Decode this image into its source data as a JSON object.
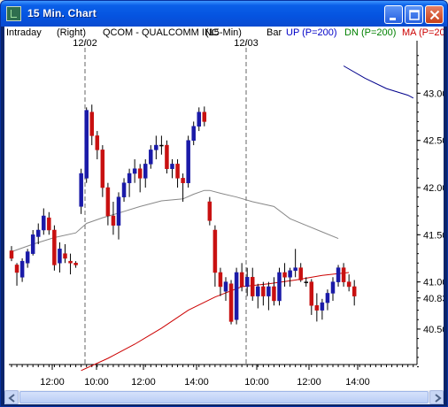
{
  "window": {
    "title": "15 Min. Chart",
    "colors": {
      "titlebar": "#0553e0",
      "close": "#c8401a"
    }
  },
  "header": {
    "mode": "Intraday",
    "scale": "(Right)",
    "instrument": "QCOM - QUALCOMM INC",
    "interval": "(15-Min)",
    "chart_style": "Bar",
    "up_label": "UP (P=200)",
    "dn_label": "DN (P=200)",
    "ma_label": "MA (P=20",
    "colors": {
      "up": "#0000c8",
      "dn": "#008000",
      "ma": "#cc0000"
    }
  },
  "chart_data": {
    "type": "candlestick",
    "day_labels": [
      "12/02",
      "12/03"
    ],
    "y_ticks": [
      43.0,
      42.5,
      42.0,
      41.5,
      41.0,
      40.5
    ],
    "last_price": "40.83",
    "x_tick_labels": [
      "12:00",
      "10:00",
      "12:00",
      "14:00",
      "10:00",
      "12:00",
      "14:00"
    ],
    "ylim": [
      40.05,
      43.55
    ],
    "candle_colors": {
      "up": "#1a1aa8",
      "down": "#c81010",
      "neutral": "#000000"
    },
    "candles": [
      [
        41.33,
        41.38,
        41.22,
        41.25
      ],
      [
        41.18,
        41.2,
        40.96,
        41.1
      ],
      [
        41.05,
        41.25,
        41.0,
        41.22
      ],
      [
        41.2,
        41.35,
        41.15,
        41.32
      ],
      [
        41.3,
        41.55,
        41.28,
        41.5
      ],
      [
        41.48,
        41.62,
        41.4,
        41.55
      ],
      [
        41.55,
        41.78,
        41.5,
        41.7
      ],
      [
        41.68,
        41.74,
        41.5,
        41.55
      ],
      [
        41.55,
        41.6,
        41.12,
        41.18
      ],
      [
        41.2,
        41.42,
        41.1,
        41.35
      ],
      [
        41.3,
        41.4,
        41.2,
        41.25
      ],
      [
        41.22,
        41.3,
        41.08,
        41.2
      ],
      [
        41.2,
        41.22,
        41.15,
        41.18
      ],
      [
        41.8,
        42.2,
        41.72,
        42.15
      ],
      [
        42.1,
        42.85,
        42.05,
        42.82
      ],
      [
        42.8,
        42.88,
        42.45,
        42.55
      ],
      [
        42.55,
        42.6,
        42.3,
        42.4
      ],
      [
        42.4,
        42.45,
        41.9,
        42.0
      ],
      [
        42.0,
        42.05,
        41.6,
        41.7
      ],
      [
        41.7,
        41.85,
        41.5,
        41.6
      ],
      [
        41.6,
        41.95,
        41.45,
        41.9
      ],
      [
        41.9,
        42.1,
        41.85,
        42.05
      ],
      [
        42.05,
        42.2,
        41.9,
        42.15
      ],
      [
        42.15,
        42.3,
        42.05,
        42.2
      ],
      [
        42.2,
        42.25,
        41.95,
        42.1
      ],
      [
        42.1,
        42.3,
        42.0,
        42.25
      ],
      [
        42.25,
        42.45,
        42.2,
        42.4
      ],
      [
        42.4,
        42.55,
        42.3,
        42.45
      ],
      [
        42.45,
        42.55,
        42.35,
        42.45
      ],
      [
        42.45,
        42.5,
        42.15,
        42.2
      ],
      [
        42.2,
        42.3,
        42.1,
        42.25
      ],
      [
        42.25,
        42.3,
        42.0,
        42.1
      ],
      [
        42.1,
        42.15,
        41.85,
        42.05
      ],
      [
        42.05,
        42.55,
        42.0,
        42.5
      ],
      [
        42.5,
        42.7,
        42.45,
        42.65
      ],
      [
        42.65,
        42.85,
        42.6,
        42.8
      ],
      [
        42.8,
        42.86,
        42.65,
        42.7
      ],
      [
        41.85,
        41.9,
        41.6,
        41.65
      ],
      [
        41.55,
        41.6,
        40.95,
        41.1
      ],
      [
        41.1,
        41.15,
        40.85,
        40.95
      ],
      [
        40.9,
        41.05,
        40.8,
        41.0
      ],
      [
        40.98,
        41.02,
        40.55,
        40.58
      ],
      [
        40.6,
        41.15,
        40.55,
        41.1
      ],
      [
        41.1,
        41.2,
        40.9,
        40.95
      ],
      [
        40.95,
        41.15,
        40.85,
        41.05
      ],
      [
        41.05,
        41.15,
        40.8,
        40.85
      ],
      [
        40.85,
        40.98,
        40.72,
        40.95
      ],
      [
        40.95,
        41.0,
        40.75,
        40.85
      ],
      [
        40.85,
        41.0,
        40.7,
        40.95
      ],
      [
        40.95,
        41.05,
        40.75,
        40.8
      ],
      [
        40.8,
        41.15,
        40.75,
        41.1
      ],
      [
        41.1,
        41.2,
        40.95,
        41.05
      ],
      [
        41.05,
        41.15,
        40.95,
        41.12
      ],
      [
        41.12,
        41.35,
        41.05,
        41.15
      ],
      [
        41.15,
        41.2,
        41.0,
        41.02
      ],
      [
        41.0,
        41.05,
        40.95,
        41.0
      ],
      [
        41.0,
        41.03,
        40.65,
        40.75
      ],
      [
        40.75,
        40.88,
        40.58,
        40.7
      ],
      [
        40.7,
        40.82,
        40.6,
        40.78
      ],
      [
        40.78,
        40.92,
        40.7,
        40.88
      ],
      [
        40.88,
        41.05,
        40.8,
        41.0
      ],
      [
        41.0,
        41.18,
        40.95,
        41.15
      ],
      [
        41.15,
        41.2,
        40.95,
        41.0
      ],
      [
        41.0,
        41.08,
        40.9,
        40.95
      ],
      [
        40.95,
        41.02,
        40.75,
        40.85
      ]
    ],
    "up_band": [
      [
        62,
        43.29
      ],
      [
        66,
        43.16
      ],
      [
        70,
        43.05
      ],
      [
        74,
        42.98
      ],
      [
        75,
        42.95
      ]
    ],
    "dn_band": [],
    "ma_line": [
      [
        0,
        41.32
      ],
      [
        4,
        41.4
      ],
      [
        8,
        41.47
      ],
      [
        12,
        41.52
      ],
      [
        14,
        41.62
      ],
      [
        17,
        41.68
      ],
      [
        20,
        41.73
      ],
      [
        24,
        41.8
      ],
      [
        28,
        41.86
      ],
      [
        32,
        41.88
      ],
      [
        34,
        41.93
      ],
      [
        36,
        41.97
      ],
      [
        37,
        41.97
      ],
      [
        39,
        41.94
      ],
      [
        42,
        41.9
      ],
      [
        45,
        41.85
      ],
      [
        49,
        41.8
      ],
      [
        52,
        41.67
      ],
      [
        55,
        41.6
      ],
      [
        58,
        41.53
      ],
      [
        61,
        41.46
      ]
    ],
    "trend_line": [
      [
        13,
        40.06
      ],
      [
        18,
        40.19
      ],
      [
        23,
        40.34
      ],
      [
        28,
        40.51
      ],
      [
        33,
        40.7
      ],
      [
        38,
        40.84
      ],
      [
        43,
        40.95
      ],
      [
        48,
        40.98
      ],
      [
        53,
        41.02
      ],
      [
        58,
        41.07
      ],
      [
        63,
        41.1
      ]
    ],
    "line_colors": {
      "up_band": "#00008b",
      "ma_line": "#888888",
      "trend_line": "#cc0000",
      "day_sep": "#666666"
    }
  }
}
